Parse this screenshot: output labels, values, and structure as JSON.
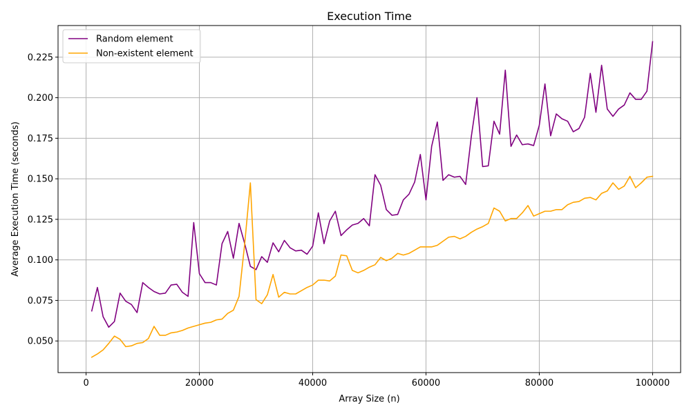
{
  "chart_data": {
    "type": "line",
    "title": "Execution Time",
    "xlabel": "Array Size (n)",
    "ylabel": "Average Execution Time (seconds)",
    "xlim": [
      -4950,
      104950
    ],
    "ylim": [
      0.0305,
      0.2445
    ],
    "xticks": [
      0,
      20000,
      40000,
      60000,
      80000,
      100000
    ],
    "xtick_labels": [
      "0",
      "20000",
      "40000",
      "60000",
      "80000",
      "100000"
    ],
    "yticks": [
      0.05,
      0.075,
      0.1,
      0.125,
      0.15,
      0.175,
      0.2,
      0.225
    ],
    "ytick_labels": [
      "0.050",
      "0.075",
      "0.100",
      "0.125",
      "0.150",
      "0.175",
      "0.200",
      "0.225"
    ],
    "grid": true,
    "legend_position": "top-left",
    "x": [
      1000,
      2000,
      3000,
      4000,
      5000,
      6000,
      7000,
      8000,
      9000,
      10000,
      11000,
      12000,
      13000,
      14000,
      15000,
      16000,
      17000,
      18000,
      19000,
      20000,
      21000,
      22000,
      23000,
      24000,
      25000,
      26000,
      27000,
      28000,
      29000,
      30000,
      31000,
      32000,
      33000,
      34000,
      35000,
      36000,
      37000,
      38000,
      39000,
      40000,
      41000,
      42000,
      43000,
      44000,
      45000,
      46000,
      47000,
      48000,
      49000,
      50000,
      51000,
      52000,
      53000,
      54000,
      55000,
      56000,
      57000,
      58000,
      59000,
      60000,
      61000,
      62000,
      63000,
      64000,
      65000,
      66000,
      67000,
      68000,
      69000,
      70000,
      71000,
      72000,
      73000,
      74000,
      75000,
      76000,
      77000,
      78000,
      79000,
      80000,
      81000,
      82000,
      83000,
      84000,
      85000,
      86000,
      87000,
      88000,
      89000,
      90000,
      91000,
      92000,
      93000,
      94000,
      95000,
      96000,
      97000,
      98000,
      99000,
      100000
    ],
    "series": [
      {
        "name": "Random element",
        "color": "#800080",
        "values": [
          0.0685,
          0.083,
          0.065,
          0.0585,
          0.062,
          0.0795,
          0.0745,
          0.0725,
          0.0675,
          0.086,
          0.083,
          0.0805,
          0.079,
          0.0795,
          0.0845,
          0.085,
          0.08,
          0.0775,
          0.123,
          0.0915,
          0.086,
          0.086,
          0.0845,
          0.11,
          0.1175,
          0.101,
          0.1225,
          0.11,
          0.096,
          0.094,
          0.102,
          0.0985,
          0.1105,
          0.105,
          0.112,
          0.1075,
          0.1055,
          0.106,
          0.1035,
          0.1085,
          0.129,
          0.11,
          0.124,
          0.13,
          0.115,
          0.1185,
          0.1215,
          0.1225,
          0.1255,
          0.121,
          0.1525,
          0.146,
          0.131,
          0.1275,
          0.128,
          0.137,
          0.1405,
          0.148,
          0.165,
          0.137,
          0.17,
          0.185,
          0.149,
          0.1525,
          0.151,
          0.1515,
          0.1465,
          0.176,
          0.2,
          0.1575,
          0.158,
          0.1855,
          0.1775,
          0.217,
          0.17,
          0.177,
          0.171,
          0.1715,
          0.1705,
          0.183,
          0.2085,
          0.1765,
          0.19,
          0.187,
          0.1855,
          0.179,
          0.181,
          0.188,
          0.215,
          0.191,
          0.22,
          0.193,
          0.1885,
          0.193,
          0.1955,
          0.203,
          0.199,
          0.199,
          0.204,
          0.2345
        ]
      },
      {
        "name": "Non-existent element",
        "color": "#ffa500",
        "values": [
          0.04,
          0.042,
          0.0445,
          0.0485,
          0.053,
          0.051,
          0.0465,
          0.047,
          0.0485,
          0.049,
          0.0515,
          0.059,
          0.0535,
          0.0535,
          0.055,
          0.0555,
          0.0565,
          0.058,
          0.059,
          0.06,
          0.061,
          0.0615,
          0.063,
          0.0635,
          0.067,
          0.069,
          0.0775,
          0.11,
          0.1475,
          0.0755,
          0.073,
          0.0785,
          0.091,
          0.077,
          0.08,
          0.079,
          0.079,
          0.081,
          0.083,
          0.0845,
          0.0875,
          0.0875,
          0.087,
          0.09,
          0.103,
          0.1025,
          0.0935,
          0.092,
          0.0935,
          0.0955,
          0.097,
          0.1015,
          0.0995,
          0.101,
          0.104,
          0.103,
          0.104,
          0.106,
          0.108,
          0.108,
          0.108,
          0.109,
          0.1115,
          0.114,
          0.1145,
          0.113,
          0.1145,
          0.117,
          0.119,
          0.1205,
          0.1225,
          0.132,
          0.13,
          0.124,
          0.1255,
          0.1255,
          0.129,
          0.1335,
          0.127,
          0.1285,
          0.13,
          0.13,
          0.131,
          0.131,
          0.134,
          0.1355,
          0.136,
          0.138,
          0.1385,
          0.137,
          0.141,
          0.1425,
          0.1475,
          0.1435,
          0.1455,
          0.1515,
          0.1445,
          0.1475,
          0.151,
          0.1515
        ]
      }
    ]
  }
}
